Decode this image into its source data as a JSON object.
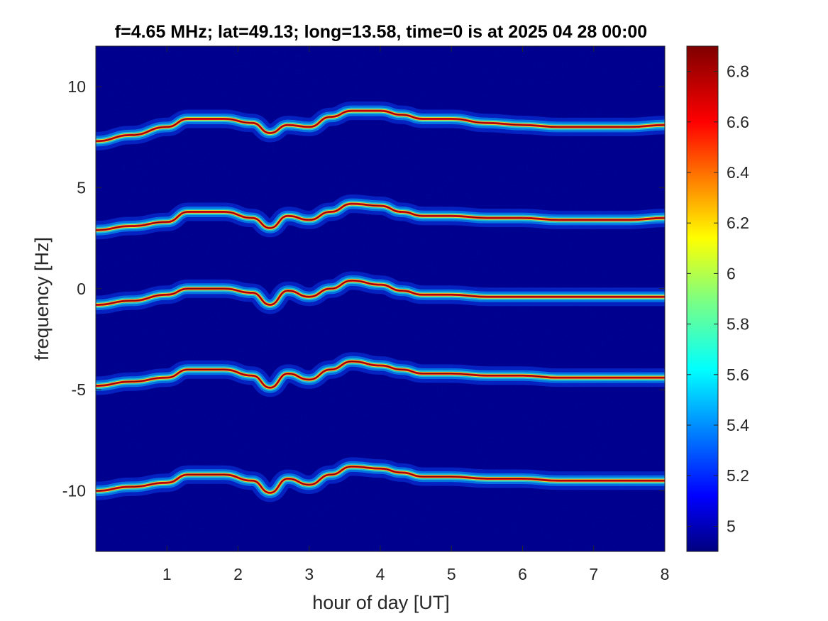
{
  "chart_data": {
    "type": "heatmap",
    "title": "f=4.65 MHz;  lat=49.13; long=13.58, time=0 is at 2025 04 28 00:00",
    "xlabel": "hour of day [UT]",
    "ylabel": "frequency [Hz]",
    "xlim": [
      0,
      8
    ],
    "ylim": [
      -13,
      12
    ],
    "xticks": [
      1,
      2,
      3,
      4,
      5,
      6,
      7,
      8
    ],
    "yticks": [
      10,
      5,
      0,
      -5,
      -10
    ],
    "grid": false,
    "colormap": "jet",
    "colorbar": {
      "range": [
        4.9,
        6.9
      ],
      "ticks": [
        5,
        5.2,
        5.4,
        5.6,
        5.8,
        6,
        6.2,
        6.4,
        6.6,
        6.8
      ]
    },
    "background_value": 4.9,
    "series": [
      {
        "x": [
          0,
          0.5,
          1,
          1.3,
          1.8,
          2.2,
          2.45,
          2.7,
          3,
          3.3,
          3.6,
          4,
          4.3,
          4.6,
          5,
          5.5,
          6,
          6.5,
          7,
          7.5,
          8
        ],
        "y": [
          7.3,
          7.6,
          8.0,
          8.4,
          8.4,
          8.2,
          7.7,
          8.1,
          8.0,
          8.5,
          8.8,
          8.8,
          8.6,
          8.4,
          8.4,
          8.2,
          8.1,
          8.0,
          8.0,
          8.0,
          8.1
        ]
      },
      {
        "x": [
          0,
          0.5,
          1,
          1.3,
          1.8,
          2.2,
          2.45,
          2.7,
          3,
          3.3,
          3.6,
          4,
          4.3,
          4.6,
          5,
          5.5,
          6,
          6.5,
          7,
          7.5,
          8
        ],
        "y": [
          2.9,
          3.1,
          3.3,
          3.8,
          3.8,
          3.5,
          3.0,
          3.6,
          3.4,
          3.8,
          4.2,
          4.1,
          3.8,
          3.6,
          3.6,
          3.5,
          3.5,
          3.4,
          3.4,
          3.4,
          3.5
        ]
      },
      {
        "x": [
          0,
          0.5,
          1,
          1.3,
          1.8,
          2.2,
          2.45,
          2.7,
          3,
          3.3,
          3.6,
          4,
          4.3,
          4.6,
          5,
          5.5,
          6,
          6.5,
          7,
          7.5,
          8
        ],
        "y": [
          -0.8,
          -0.6,
          -0.3,
          0.0,
          0.0,
          -0.2,
          -0.8,
          -0.1,
          -0.4,
          0.0,
          0.4,
          0.2,
          -0.1,
          -0.3,
          -0.3,
          -0.4,
          -0.4,
          -0.4,
          -0.4,
          -0.4,
          -0.4
        ]
      },
      {
        "x": [
          0,
          0.5,
          1,
          1.3,
          1.8,
          2.2,
          2.45,
          2.7,
          3,
          3.3,
          3.6,
          4,
          4.3,
          4.6,
          5,
          5.5,
          6,
          6.5,
          7,
          7.5,
          8
        ],
        "y": [
          -4.8,
          -4.6,
          -4.4,
          -4.0,
          -4.0,
          -4.3,
          -4.9,
          -4.2,
          -4.5,
          -4.0,
          -3.6,
          -3.8,
          -4.0,
          -4.2,
          -4.2,
          -4.3,
          -4.3,
          -4.4,
          -4.4,
          -4.4,
          -4.4
        ]
      },
      {
        "x": [
          0,
          0.5,
          1,
          1.3,
          1.8,
          2.2,
          2.45,
          2.7,
          3,
          3.3,
          3.6,
          4,
          4.3,
          4.6,
          5,
          5.5,
          6,
          6.5,
          7,
          7.5,
          8
        ],
        "y": [
          -10.0,
          -9.8,
          -9.6,
          -9.2,
          -9.2,
          -9.5,
          -10.1,
          -9.4,
          -9.7,
          -9.2,
          -8.8,
          -8.9,
          -9.1,
          -9.3,
          -9.3,
          -9.4,
          -9.4,
          -9.5,
          -9.5,
          -9.5,
          -9.5
        ]
      }
    ]
  }
}
